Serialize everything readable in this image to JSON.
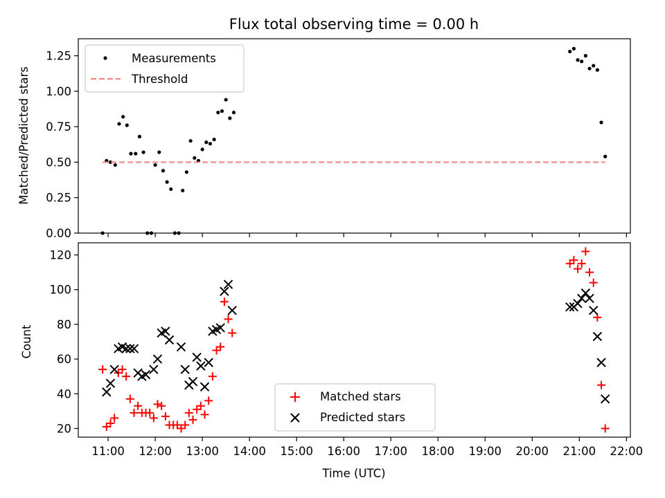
{
  "chart_data": [
    {
      "type": "scatter",
      "title": "Flux total observing time = 0.00 h",
      "xlabel": "",
      "ylabel": "Matched/Predicted stars",
      "xlim": [
        "10:22",
        "22:05"
      ],
      "ylim": [
        0,
        1.37
      ],
      "yticks": [
        "0.00",
        "0.25",
        "0.50",
        "0.75",
        "1.00",
        "1.25"
      ],
      "grid": false,
      "legend_position": "upper-left",
      "series": [
        {
          "name": "Measurements",
          "marker": "dot",
          "color": "#000000",
          "points": [
            [
              "10:53",
              0.0
            ],
            [
              "10:58",
              0.51
            ],
            [
              "11:03",
              0.5
            ],
            [
              "11:09",
              0.48
            ],
            [
              "11:14",
              0.77
            ],
            [
              "11:19",
              0.82
            ],
            [
              "11:24",
              0.76
            ],
            [
              "11:29",
              0.56
            ],
            [
              "11:35",
              0.56
            ],
            [
              "11:40",
              0.68
            ],
            [
              "11:45",
              0.57
            ],
            [
              "11:50",
              0.0
            ],
            [
              "11:55",
              0.0
            ],
            [
              "12:00",
              0.48
            ],
            [
              "12:05",
              0.57
            ],
            [
              "12:10",
              0.44
            ],
            [
              "12:15",
              0.36
            ],
            [
              "12:20",
              0.31
            ],
            [
              "12:25",
              0.0
            ],
            [
              "12:30",
              0.0
            ],
            [
              "12:35",
              0.3
            ],
            [
              "12:40",
              0.43
            ],
            [
              "12:45",
              0.65
            ],
            [
              "12:50",
              0.53
            ],
            [
              "12:55",
              0.51
            ],
            [
              "13:00",
              0.59
            ],
            [
              "13:05",
              0.64
            ],
            [
              "13:10",
              0.63
            ],
            [
              "13:15",
              0.66
            ],
            [
              "13:20",
              0.85
            ],
            [
              "13:25",
              0.86
            ],
            [
              "13:30",
              0.94
            ],
            [
              "13:35",
              0.81
            ],
            [
              "13:40",
              0.85
            ],
            [
              "20:48",
              1.28
            ],
            [
              "20:53",
              1.3
            ],
            [
              "20:58",
              1.22
            ],
            [
              "21:03",
              1.21
            ],
            [
              "21:08",
              1.25
            ],
            [
              "21:13",
              1.16
            ],
            [
              "21:18",
              1.18
            ],
            [
              "21:23",
              1.15
            ],
            [
              "21:28",
              0.78
            ],
            [
              "21:33",
              0.54
            ]
          ]
        },
        {
          "name": "Threshold",
          "marker": "dashed-line",
          "color": "#f08080",
          "points": [
            [
              "10:53",
              0.5
            ],
            [
              "21:33",
              0.5
            ]
          ]
        }
      ]
    },
    {
      "type": "scatter",
      "title": "",
      "xlabel": "Time (UTC)",
      "ylabel": "Count",
      "xlim": [
        "10:22",
        "22:05"
      ],
      "xticks": [
        "11:00",
        "12:00",
        "13:00",
        "14:00",
        "15:00",
        "16:00",
        "17:00",
        "18:00",
        "19:00",
        "20:00",
        "21:00",
        "22:00"
      ],
      "ylim": [
        15,
        127
      ],
      "yticks": [
        "20",
        "40",
        "60",
        "80",
        "100",
        "120"
      ],
      "grid": false,
      "legend_position": "lower-center",
      "series": [
        {
          "name": "Matched stars",
          "marker": "plus",
          "color": "#ff0000",
          "points": [
            [
              "10:53",
              54
            ],
            [
              "10:58",
              21
            ],
            [
              "11:03",
              23
            ],
            [
              "11:08",
              26
            ],
            [
              "11:13",
              52
            ],
            [
              "11:18",
              54
            ],
            [
              "11:23",
              50
            ],
            [
              "11:28",
              37
            ],
            [
              "11:33",
              29
            ],
            [
              "11:38",
              33
            ],
            [
              "11:43",
              29
            ],
            [
              "11:48",
              29
            ],
            [
              "11:53",
              29
            ],
            [
              "11:58",
              26
            ],
            [
              "12:03",
              34
            ],
            [
              "12:08",
              33
            ],
            [
              "12:13",
              27
            ],
            [
              "12:18",
              22
            ],
            [
              "12:23",
              22
            ],
            [
              "12:28",
              22
            ],
            [
              "12:33",
              20
            ],
            [
              "12:38",
              22
            ],
            [
              "12:43",
              29
            ],
            [
              "12:48",
              25
            ],
            [
              "12:53",
              31
            ],
            [
              "12:58",
              33
            ],
            [
              "13:03",
              28
            ],
            [
              "13:08",
              36
            ],
            [
              "13:13",
              50
            ],
            [
              "13:18",
              65
            ],
            [
              "13:23",
              67
            ],
            [
              "13:28",
              93
            ],
            [
              "13:33",
              83
            ],
            [
              "13:38",
              75
            ],
            [
              "20:48",
              115
            ],
            [
              "20:53",
              117
            ],
            [
              "20:58",
              112
            ],
            [
              "21:03",
              115
            ],
            [
              "21:08",
              122
            ],
            [
              "21:13",
              110
            ],
            [
              "21:18",
              104
            ],
            [
              "21:23",
              84
            ],
            [
              "21:28",
              45
            ],
            [
              "21:33",
              20
            ]
          ]
        },
        {
          "name": "Predicted stars",
          "marker": "x",
          "color": "#000000",
          "points": [
            [
              "10:58",
              41
            ],
            [
              "11:03",
              46
            ],
            [
              "11:08",
              54
            ],
            [
              "11:13",
              66
            ],
            [
              "11:18",
              67
            ],
            [
              "11:23",
              66
            ],
            [
              "11:28",
              66
            ],
            [
              "11:33",
              66
            ],
            [
              "11:38",
              52
            ],
            [
              "11:43",
              50
            ],
            [
              "11:48",
              51
            ],
            [
              "11:58",
              54
            ],
            [
              "12:03",
              60
            ],
            [
              "12:08",
              75
            ],
            [
              "12:13",
              76
            ],
            [
              "12:18",
              71
            ],
            [
              "12:33",
              67
            ],
            [
              "12:38",
              54
            ],
            [
              "12:43",
              45
            ],
            [
              "12:48",
              47
            ],
            [
              "12:53",
              61
            ],
            [
              "12:58",
              56
            ],
            [
              "13:03",
              44
            ],
            [
              "13:08",
              58
            ],
            [
              "13:13",
              76
            ],
            [
              "13:18",
              77
            ],
            [
              "13:23",
              78
            ],
            [
              "13:28",
              99
            ],
            [
              "13:33",
              103
            ],
            [
              "13:38",
              88
            ],
            [
              "20:48",
              90
            ],
            [
              "20:53",
              90
            ],
            [
              "20:58",
              92
            ],
            [
              "21:03",
              95
            ],
            [
              "21:08",
              98
            ],
            [
              "21:13",
              95
            ],
            [
              "21:18",
              88
            ],
            [
              "21:23",
              73
            ],
            [
              "21:28",
              58
            ],
            [
              "21:33",
              37
            ]
          ]
        }
      ]
    }
  ]
}
